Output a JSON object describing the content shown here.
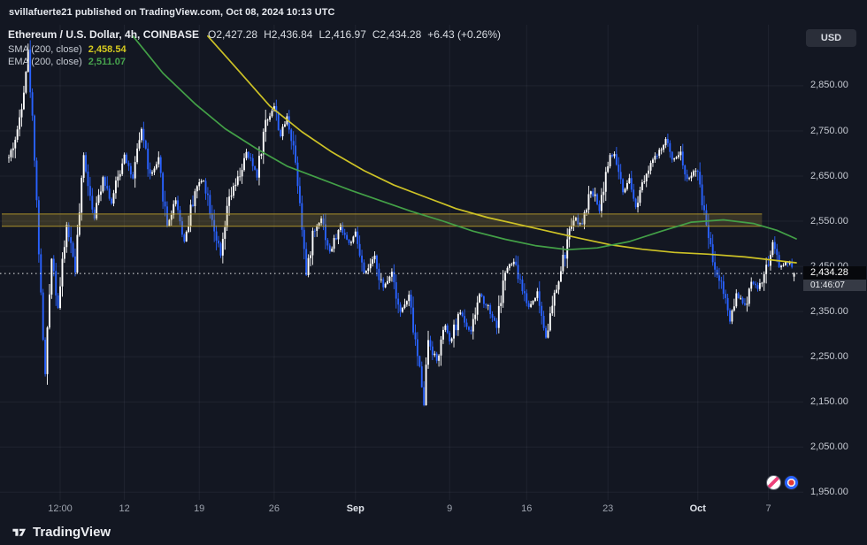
{
  "header": {
    "published_line": "svillafuerte21 published on TradingView.com, Oct 08, 2024 10:13 UTC"
  },
  "legend": {
    "symbol_line": "Ethereum / U.S. Dollar, 4h, COINBASE",
    "ohlc_parts": [
      "O2,427.28",
      "H2,436.84",
      "L2,416.97",
      "C2,434.28",
      "+6.43 (+0.26%)"
    ],
    "sma_label": "SMA (200, close)",
    "sma_value": "2,458.54",
    "ema_label": "EMA (200, close)",
    "ema_value": "2,511.07"
  },
  "price_axis": {
    "currency_button": "USD",
    "labels": [
      {
        "text": "2,850.00",
        "value": 2850
      },
      {
        "text": "2,750.00",
        "value": 2750
      },
      {
        "text": "2,650.00",
        "value": 2650
      },
      {
        "text": "2,550.00",
        "value": 2550
      },
      {
        "text": "2,450.00",
        "value": 2450
      },
      {
        "text": "2,350.00",
        "value": 2350
      },
      {
        "text": "2,250.00",
        "value": 2250
      },
      {
        "text": "2,150.00",
        "value": 2150
      },
      {
        "text": "2,050.00",
        "value": 2050
      },
      {
        "text": "1,950.00",
        "value": 1950
      }
    ],
    "current_price": {
      "text": "2,434.28",
      "value": 2434.28
    },
    "countdown": "01:46:07"
  },
  "time_axis": {
    "labels": [
      {
        "text": "12:00",
        "i": 24,
        "month": false
      },
      {
        "text": "12",
        "i": 54,
        "month": false
      },
      {
        "text": "19",
        "i": 89,
        "month": false
      },
      {
        "text": "26",
        "i": 124,
        "month": false
      },
      {
        "text": "Sep",
        "i": 162,
        "month": true
      },
      {
        "text": "9",
        "i": 206,
        "month": false
      },
      {
        "text": "16",
        "i": 242,
        "month": false
      },
      {
        "text": "23",
        "i": 280,
        "month": false
      },
      {
        "text": "Oct",
        "i": 322,
        "month": true
      },
      {
        "text": "7",
        "i": 355,
        "month": false
      }
    ]
  },
  "footer": {
    "brand": "TradingView"
  },
  "icons": {
    "brand_mark": "tradingview-logo",
    "reaction_left": "discount-emoji-badge",
    "reaction_right": "target-emoji-badge"
  },
  "colors": {
    "background": "#131722",
    "grid": "rgba(240,243,250,0.06)",
    "candle_up": "#ffffff",
    "candle_down": "#2962ff",
    "sma": "#cdc226",
    "ema": "#43a047",
    "zone_fill": "rgba(185,158,60,0.22)",
    "zone_border": "#a98f2b",
    "price_line": "#ffffff",
    "axis_text": "#c6cad2"
  },
  "chart_data": {
    "type": "candlestick",
    "title": "Ethereum / U.S. Dollar, 4h, COINBASE",
    "symbol": "Ethereum / U.S. Dollar",
    "interval": "4h",
    "exchange": "COINBASE",
    "last_candle": {
      "open": 2427.28,
      "high": 2436.84,
      "low": 2416.97,
      "close": 2434.28,
      "change": "+6.43 (+0.26%)"
    },
    "current_price": 2434.28,
    "sma_latest": 2458.54,
    "ema_latest": 2511.07,
    "n_candles": 368,
    "y_max": 2985,
    "y_min": 1933,
    "grid": true,
    "price_path_anchors": [
      [
        0,
        2690
      ],
      [
        4,
        2745
      ],
      [
        9,
        2920
      ],
      [
        12,
        2700
      ],
      [
        15,
        2380
      ],
      [
        17,
        2210
      ],
      [
        20,
        2480
      ],
      [
        23,
        2360
      ],
      [
        27,
        2540
      ],
      [
        31,
        2450
      ],
      [
        35,
        2690
      ],
      [
        40,
        2560
      ],
      [
        44,
        2650
      ],
      [
        48,
        2590
      ],
      [
        54,
        2700
      ],
      [
        58,
        2640
      ],
      [
        62,
        2755
      ],
      [
        66,
        2650
      ],
      [
        70,
        2680
      ],
      [
        74,
        2540
      ],
      [
        78,
        2600
      ],
      [
        82,
        2505
      ],
      [
        87,
        2620
      ],
      [
        91,
        2645
      ],
      [
        95,
        2560
      ],
      [
        99,
        2470
      ],
      [
        103,
        2600
      ],
      [
        107,
        2640
      ],
      [
        111,
        2700
      ],
      [
        116,
        2655
      ],
      [
        120,
        2770
      ],
      [
        124,
        2805
      ],
      [
        127,
        2740
      ],
      [
        130,
        2780
      ],
      [
        133,
        2720
      ],
      [
        136,
        2600
      ],
      [
        139,
        2430
      ],
      [
        142,
        2520
      ],
      [
        146,
        2560
      ],
      [
        150,
        2480
      ],
      [
        155,
        2540
      ],
      [
        159,
        2500
      ],
      [
        162,
        2520
      ],
      [
        166,
        2430
      ],
      [
        171,
        2470
      ],
      [
        175,
        2400
      ],
      [
        179,
        2440
      ],
      [
        183,
        2350
      ],
      [
        187,
        2380
      ],
      [
        191,
        2250
      ],
      [
        194,
        2158
      ],
      [
        196,
        2290
      ],
      [
        200,
        2240
      ],
      [
        204,
        2320
      ],
      [
        206,
        2280
      ],
      [
        211,
        2350
      ],
      [
        216,
        2300
      ],
      [
        220,
        2390
      ],
      [
        224,
        2360
      ],
      [
        228,
        2320
      ],
      [
        232,
        2440
      ],
      [
        236,
        2460
      ],
      [
        240,
        2400
      ],
      [
        243,
        2360
      ],
      [
        247,
        2390
      ],
      [
        251,
        2295
      ],
      [
        255,
        2380
      ],
      [
        259,
        2460
      ],
      [
        264,
        2560
      ],
      [
        268,
        2540
      ],
      [
        272,
        2620
      ],
      [
        276,
        2580
      ],
      [
        280,
        2680
      ],
      [
        283,
        2700
      ],
      [
        287,
        2610
      ],
      [
        290,
        2640
      ],
      [
        293,
        2580
      ],
      [
        296,
        2640
      ],
      [
        300,
        2680
      ],
      [
        304,
        2700
      ],
      [
        307,
        2730
      ],
      [
        310,
        2690
      ],
      [
        314,
        2700
      ],
      [
        317,
        2640
      ],
      [
        320,
        2660
      ],
      [
        322,
        2650
      ],
      [
        327,
        2520
      ],
      [
        330,
        2450
      ],
      [
        334,
        2400
      ],
      [
        337,
        2330
      ],
      [
        340,
        2390
      ],
      [
        344,
        2360
      ],
      [
        347,
        2420
      ],
      [
        350,
        2400
      ],
      [
        354,
        2440
      ],
      [
        357,
        2500
      ],
      [
        360,
        2450
      ],
      [
        364,
        2460
      ],
      [
        367,
        2434
      ]
    ],
    "sma_points": [
      [
        93,
        2960
      ],
      [
        108,
        2880
      ],
      [
        122,
        2805
      ],
      [
        137,
        2748
      ],
      [
        151,
        2703
      ],
      [
        166,
        2662
      ],
      [
        180,
        2630
      ],
      [
        195,
        2603
      ],
      [
        209,
        2578
      ],
      [
        224,
        2558
      ],
      [
        238,
        2543
      ],
      [
        253,
        2527
      ],
      [
        267,
        2512
      ],
      [
        281,
        2498
      ],
      [
        296,
        2488
      ],
      [
        311,
        2481
      ],
      [
        327,
        2477
      ],
      [
        344,
        2471
      ],
      [
        368,
        2458
      ]
    ],
    "ema_points": [
      [
        58,
        2960
      ],
      [
        72,
        2878
      ],
      [
        87,
        2810
      ],
      [
        101,
        2755
      ],
      [
        116,
        2710
      ],
      [
        130,
        2672
      ],
      [
        145,
        2645
      ],
      [
        160,
        2618
      ],
      [
        174,
        2595
      ],
      [
        188,
        2572
      ],
      [
        203,
        2550
      ],
      [
        217,
        2528
      ],
      [
        232,
        2510
      ],
      [
        246,
        2496
      ],
      [
        261,
        2487
      ],
      [
        275,
        2491
      ],
      [
        290,
        2505
      ],
      [
        305,
        2528
      ],
      [
        319,
        2548
      ],
      [
        334,
        2553
      ],
      [
        348,
        2545
      ],
      [
        359,
        2530
      ],
      [
        368,
        2511
      ]
    ],
    "supply_zone": {
      "price_top": 2566,
      "price_bottom": 2539,
      "i_start": 0,
      "i_end": 352
    }
  }
}
